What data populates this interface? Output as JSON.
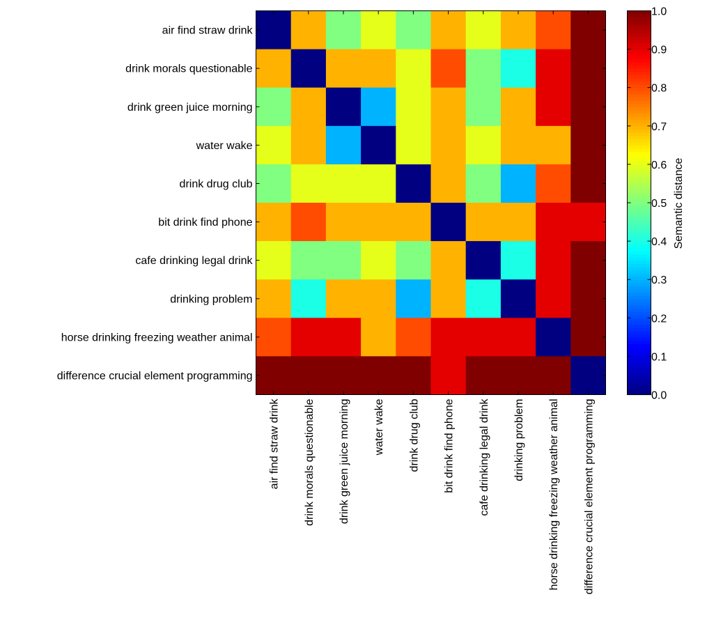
{
  "chart_data": {
    "type": "heatmap",
    "labels": [
      "air find straw drink",
      "drink morals questionable",
      "drink green juice morning",
      "water wake",
      "drink drug club",
      "bit drink find phone",
      "cafe drinking legal drink",
      "drinking problem",
      "horse drinking freezing weather animal",
      "difference crucial element programming"
    ],
    "matrix": [
      [
        0.0,
        0.7,
        0.5,
        0.6,
        0.5,
        0.7,
        0.6,
        0.7,
        0.8,
        1.0
      ],
      [
        0.7,
        0.0,
        0.7,
        0.7,
        0.6,
        0.8,
        0.5,
        0.4,
        0.9,
        1.0
      ],
      [
        0.5,
        0.7,
        0.0,
        0.3,
        0.6,
        0.7,
        0.5,
        0.7,
        0.9,
        1.0
      ],
      [
        0.6,
        0.7,
        0.3,
        0.0,
        0.6,
        0.7,
        0.6,
        0.7,
        0.7,
        1.0
      ],
      [
        0.5,
        0.6,
        0.6,
        0.6,
        0.0,
        0.7,
        0.5,
        0.3,
        0.8,
        1.0
      ],
      [
        0.7,
        0.8,
        0.7,
        0.7,
        0.7,
        0.0,
        0.7,
        0.7,
        0.9,
        0.9
      ],
      [
        0.6,
        0.5,
        0.5,
        0.6,
        0.5,
        0.7,
        0.0,
        0.4,
        0.9,
        1.0
      ],
      [
        0.7,
        0.4,
        0.7,
        0.7,
        0.3,
        0.7,
        0.4,
        0.0,
        0.9,
        1.0
      ],
      [
        0.8,
        0.9,
        0.9,
        0.7,
        0.8,
        0.9,
        0.9,
        0.9,
        0.0,
        1.0
      ],
      [
        1.0,
        1.0,
        1.0,
        1.0,
        1.0,
        0.9,
        1.0,
        1.0,
        1.0,
        0.0
      ]
    ],
    "colormap": "jet",
    "vmin": 0.0,
    "vmax": 1.0,
    "colorbar": {
      "label": "Semantic distance",
      "ticks": [
        "0.0",
        "0.1",
        "0.2",
        "0.3",
        "0.4",
        "0.5",
        "0.6",
        "0.7",
        "0.8",
        "0.9",
        "1.0"
      ]
    }
  }
}
